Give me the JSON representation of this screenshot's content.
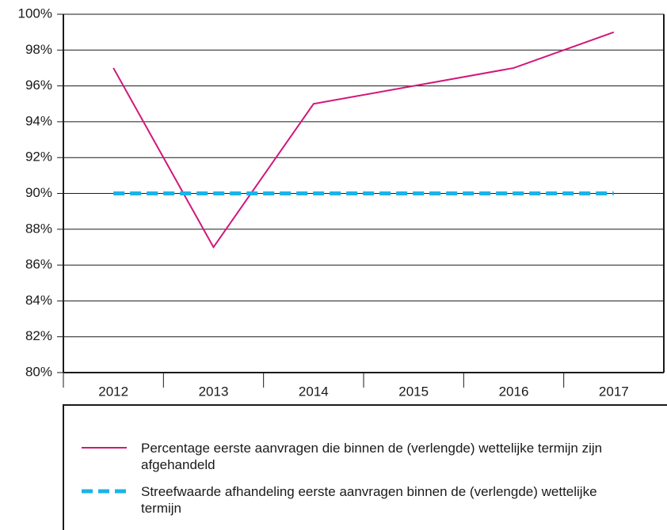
{
  "chart_data": {
    "type": "line",
    "categories": [
      "2012",
      "2013",
      "2014",
      "2015",
      "2016",
      "2017"
    ],
    "series": [
      {
        "name": "Percentage eerste aanvragen die binnen de (verlengde) wettelijke termijn zijn afgehandeld",
        "color": "#d2177a",
        "dash": false,
        "values": [
          97,
          87,
          95,
          96,
          97,
          99
        ]
      },
      {
        "name": "Streefwaarde afhandeling eerste aanvragen binnen de (verlengde) wettelijke termijn",
        "color": "#1bb3e8",
        "dash": true,
        "values": [
          90,
          90,
          90,
          90,
          90,
          90
        ]
      }
    ],
    "ylim": [
      80,
      100
    ],
    "yticks": [
      {
        "value": 80,
        "label": "80%"
      },
      {
        "value": 82,
        "label": "82%"
      },
      {
        "value": 84,
        "label": "84%"
      },
      {
        "value": 86,
        "label": "86%"
      },
      {
        "value": 88,
        "label": "88%"
      },
      {
        "value": 90,
        "label": "90%"
      },
      {
        "value": 92,
        "label": "92%"
      },
      {
        "value": 94,
        "label": "94%"
      },
      {
        "value": 96,
        "label": "96%"
      },
      {
        "value": 98,
        "label": "98%"
      },
      {
        "value": 100,
        "label": "100%"
      }
    ],
    "grid": true
  }
}
